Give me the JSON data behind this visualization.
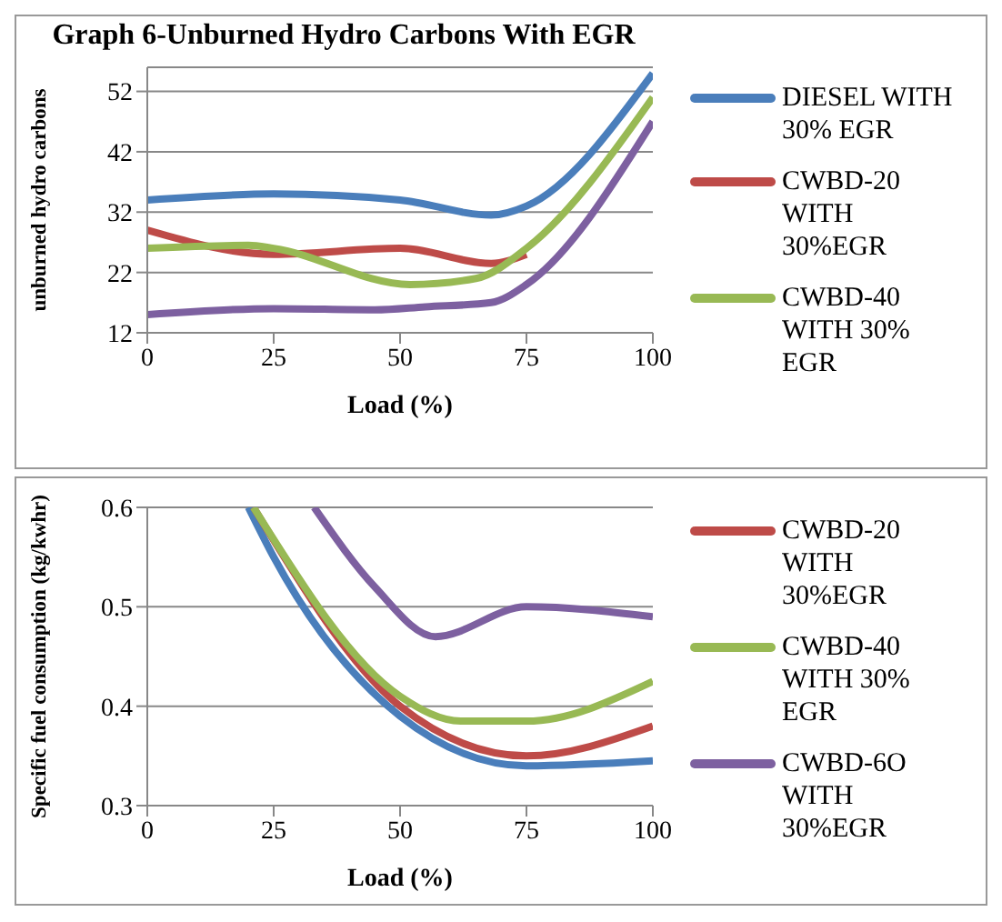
{
  "chart_data": [
    {
      "type": "line",
      "title": "Graph 6-Unburned Hydro Carbons With EGR",
      "xlabel": "Load (%)",
      "ylabel": "unburned hydro carbons",
      "xlim": [
        0,
        100
      ],
      "xticks": [
        0,
        25,
        50,
        75,
        100
      ],
      "ylim": [
        12,
        56
      ],
      "yticks": [
        12,
        22,
        32,
        42,
        52
      ],
      "grid": "y",
      "legend": "right",
      "marker": "none",
      "line_style": "solid",
      "series": [
        {
          "name": "DIESEL WITH 30% EGR",
          "color": "#4a7ebb",
          "x": [
            0,
            25,
            50,
            68,
            75,
            100
          ],
          "values": [
            34,
            35,
            34,
            31.5,
            33,
            55
          ]
        },
        {
          "name": "CWBD-20 WITH 30%EGR",
          "color": "#be4b48",
          "x": [
            0,
            25,
            50,
            68,
            75
          ],
          "values": [
            29,
            25,
            26,
            23.5,
            25
          ]
        },
        {
          "name": "CWBD-40 WITH 30% EGR",
          "color": "#98b954",
          "x": [
            0,
            20,
            25,
            52,
            65,
            75,
            100
          ],
          "values": [
            26,
            26.5,
            26,
            20,
            21,
            26,
            51
          ]
        },
        {
          "color": "#7d60a0",
          "x": [
            0,
            25,
            45,
            55,
            68,
            75,
            100
          ],
          "values": [
            15,
            16,
            15.8,
            16.3,
            17,
            20,
            47
          ]
        }
      ]
    },
    {
      "type": "line",
      "xlabel": "Load (%)",
      "ylabel": "Specific fuel consumption (kg/kwhr)",
      "xlim": [
        0,
        100
      ],
      "xticks": [
        0,
        25,
        50,
        75,
        100
      ],
      "ylim": [
        0.3,
        0.6
      ],
      "yticks": [
        0.3,
        0.4,
        0.5,
        0.6
      ],
      "grid": "y",
      "legend": "right",
      "marker": "none",
      "line_style": "solid",
      "series": [
        {
          "color": "#4a7ebb",
          "x": [
            20,
            25,
            50,
            75,
            100
          ],
          "values": [
            0.6,
            0.55,
            0.39,
            0.34,
            0.345
          ]
        },
        {
          "name": "CWBD-20 WITH 30%EGR",
          "color": "#be4b48",
          "x": [
            21,
            50,
            75,
            100
          ],
          "values": [
            0.6,
            0.4,
            0.35,
            0.38
          ]
        },
        {
          "name": "CWBD-40 WITH 30% EGR",
          "color": "#98b954",
          "x": [
            21,
            50,
            62,
            75,
            100
          ],
          "values": [
            0.6,
            0.41,
            0.385,
            0.385,
            0.425
          ]
        },
        {
          "name": "CWBD-6O WITH 30%EGR",
          "color": "#7d60a0",
          "x": [
            33,
            45,
            57,
            75,
            100
          ],
          "values": [
            0.6,
            0.52,
            0.47,
            0.5,
            0.49
          ]
        }
      ]
    }
  ]
}
